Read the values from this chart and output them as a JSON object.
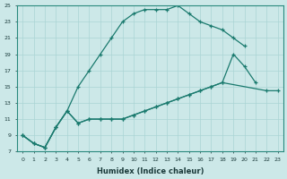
{
  "xlabel": "Humidex (Indice chaleur)",
  "background_color": "#cce8e8",
  "grid_color": "#aad4d4",
  "line_color": "#1a7a6e",
  "xlim": [
    -0.5,
    23.5
  ],
  "ylim": [
    7,
    25
  ],
  "xticks": [
    0,
    1,
    2,
    3,
    4,
    5,
    6,
    7,
    8,
    9,
    10,
    11,
    12,
    13,
    14,
    15,
    16,
    17,
    18,
    19,
    20,
    21,
    22,
    23
  ],
  "yticks": [
    7,
    9,
    11,
    13,
    15,
    17,
    19,
    21,
    23,
    25
  ],
  "line1_x": [
    0,
    1,
    2,
    3,
    4,
    5,
    6,
    7,
    8,
    9,
    10,
    11,
    12,
    13,
    14,
    15,
    16,
    17,
    18,
    19,
    20
  ],
  "line1_y": [
    9,
    8,
    7.5,
    10,
    12,
    15,
    17,
    19,
    21,
    23,
    24,
    24.5,
    24.5,
    24.5,
    25,
    24,
    23,
    22.5,
    22,
    21,
    20
  ],
  "line2_x": [
    0,
    1,
    2,
    3,
    4,
    5,
    6,
    7,
    8,
    9,
    10,
    11,
    12,
    13,
    14,
    15,
    16,
    17,
    18,
    19,
    20,
    21
  ],
  "line2_y": [
    9,
    8,
    7.5,
    10,
    12,
    10.5,
    11,
    11,
    11,
    11,
    11.5,
    12,
    12.5,
    13,
    13.5,
    14,
    14.5,
    15,
    15.5,
    19,
    17.5,
    15.5
  ],
  "line3_x": [
    0,
    1,
    2,
    3,
    4,
    5,
    6,
    7,
    8,
    9,
    10,
    11,
    12,
    13,
    14,
    15,
    16,
    17,
    18,
    22,
    23
  ],
  "line3_y": [
    9,
    8,
    7.5,
    10,
    12,
    10.5,
    11,
    11,
    11,
    11,
    11.5,
    12,
    12.5,
    13,
    13.5,
    14,
    14.5,
    15,
    15.5,
    14.5,
    14.5
  ]
}
